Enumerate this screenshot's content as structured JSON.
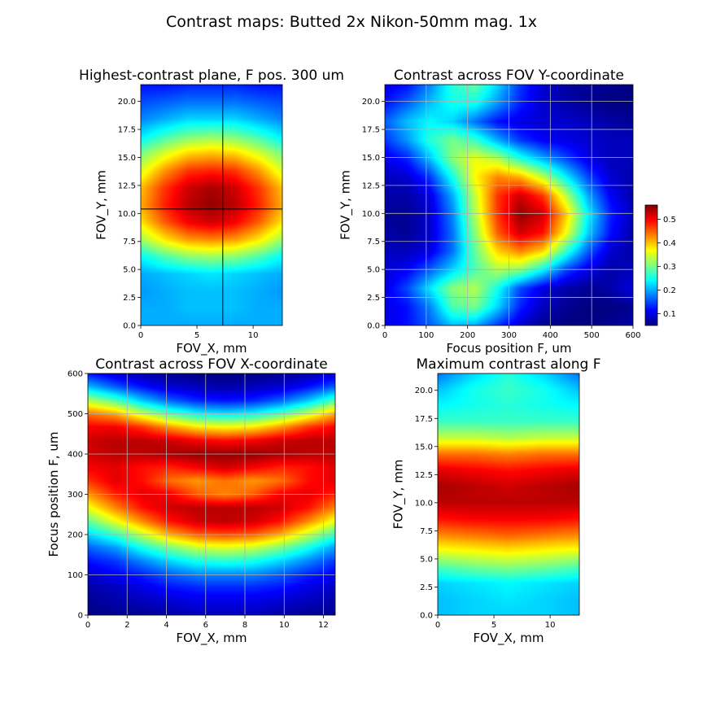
{
  "figure": {
    "suptitle": "Contrast maps: Butted 2x Nikon-50mm mag. 1x",
    "colormap": "jet",
    "background": "#ffffff"
  },
  "chart_data": [
    {
      "id": "best_plane",
      "type": "heatmap",
      "title": "Highest-contrast plane, F pos. 300 um",
      "xlabel": "FOV_X, mm",
      "ylabel": "FOV_Y, mm",
      "xlim": [
        0,
        12.6
      ],
      "ylim": [
        0,
        21.5
      ],
      "xticks": [
        {
          "v": 0,
          "label": "0"
        },
        {
          "v": 5,
          "label": "5"
        },
        {
          "v": 10,
          "label": "10"
        }
      ],
      "yticks": [
        {
          "v": 0,
          "label": "0.0"
        },
        {
          "v": 2.5,
          "label": "2.5"
        },
        {
          "v": 5,
          "label": "5.0"
        },
        {
          "v": 7.5,
          "label": "7.5"
        },
        {
          "v": 10,
          "label": "10.0"
        },
        {
          "v": 12.5,
          "label": "12.5"
        },
        {
          "v": 15,
          "label": "15.0"
        },
        {
          "v": 17.5,
          "label": "17.5"
        },
        {
          "v": 20,
          "label": "20.0"
        }
      ],
      "grid": false,
      "crosshair": {
        "x": 7.3,
        "y": 10.4,
        "color": "#000000"
      },
      "values_model": "peak ~0.55 near (x 7, y 10.5); elliptical falloff to ~0.2 at y 5 and y 15.5; ~0.12 at top edge",
      "values": [
        [
          0.2,
          0.2,
          0.2,
          0.2,
          0.2,
          0.2,
          0.2
        ],
        [
          0.2,
          0.2,
          0.21,
          0.21,
          0.21,
          0.2,
          0.2
        ],
        [
          0.19,
          0.2,
          0.21,
          0.21,
          0.21,
          0.2,
          0.19
        ],
        [
          0.2,
          0.21,
          0.22,
          0.23,
          0.22,
          0.21,
          0.2
        ],
        [
          0.24,
          0.28,
          0.31,
          0.32,
          0.31,
          0.28,
          0.24
        ],
        [
          0.32,
          0.38,
          0.42,
          0.43,
          0.42,
          0.38,
          0.32
        ],
        [
          0.38,
          0.45,
          0.5,
          0.52,
          0.5,
          0.45,
          0.38
        ],
        [
          0.41,
          0.48,
          0.53,
          0.55,
          0.53,
          0.48,
          0.41
        ],
        [
          0.4,
          0.47,
          0.52,
          0.54,
          0.52,
          0.47,
          0.4
        ],
        [
          0.35,
          0.42,
          0.47,
          0.48,
          0.47,
          0.42,
          0.35
        ],
        [
          0.3,
          0.35,
          0.39,
          0.4,
          0.39,
          0.35,
          0.3
        ],
        [
          0.23,
          0.27,
          0.3,
          0.31,
          0.3,
          0.27,
          0.23
        ],
        [
          0.18,
          0.2,
          0.22,
          0.22,
          0.22,
          0.2,
          0.18
        ],
        [
          0.15,
          0.16,
          0.17,
          0.17,
          0.17,
          0.16,
          0.15
        ],
        [
          0.12,
          0.12,
          0.13,
          0.13,
          0.13,
          0.12,
          0.12
        ]
      ]
    },
    {
      "id": "along_y",
      "type": "heatmap",
      "title": "Contrast across FOV Y-coordinate",
      "xlabel": "Focus position F, um",
      "ylabel": "FOV_Y, mm",
      "xlim": [
        0,
        600
      ],
      "ylim": [
        0,
        21.5
      ],
      "xticks": [
        {
          "v": 0,
          "label": "0"
        },
        {
          "v": 100,
          "label": "100"
        },
        {
          "v": 200,
          "label": "200"
        },
        {
          "v": 300,
          "label": "300"
        },
        {
          "v": 400,
          "label": "400"
        },
        {
          "v": 500,
          "label": "500"
        },
        {
          "v": 600,
          "label": "600"
        }
      ],
      "yticks": [
        {
          "v": 0,
          "label": "0.0"
        },
        {
          "v": 2.5,
          "label": "2.5"
        },
        {
          "v": 5,
          "label": "5.0"
        },
        {
          "v": 7.5,
          "label": "7.5"
        },
        {
          "v": 10,
          "label": "10.0"
        },
        {
          "v": 12.5,
          "label": "12.5"
        },
        {
          "v": 15,
          "label": "15.0"
        },
        {
          "v": 17.5,
          "label": "17.5"
        },
        {
          "v": 20,
          "label": "20.0"
        }
      ],
      "grid": true,
      "values_model": "curved ridge: peak F ~240 um at edges, ~320 um at center; max ~0.55 at (F 300, Y 10)",
      "values": [
        [
          0.1,
          0.12,
          0.16,
          0.21,
          0.2,
          0.14,
          0.09,
          0.06,
          0.05,
          0.05,
          0.06,
          0.07
        ],
        [
          0.1,
          0.12,
          0.18,
          0.28,
          0.3,
          0.22,
          0.13,
          0.08,
          0.06,
          0.05,
          0.05,
          0.06
        ],
        [
          0.1,
          0.15,
          0.23,
          0.31,
          0.33,
          0.25,
          0.15,
          0.1,
          0.07,
          0.06,
          0.07,
          0.1
        ],
        [
          0.09,
          0.11,
          0.16,
          0.22,
          0.28,
          0.33,
          0.31,
          0.24,
          0.15,
          0.1,
          0.07,
          0.08
        ],
        [
          0.08,
          0.08,
          0.1,
          0.17,
          0.29,
          0.39,
          0.43,
          0.39,
          0.27,
          0.16,
          0.09,
          0.07
        ],
        [
          0.07,
          0.06,
          0.09,
          0.17,
          0.31,
          0.45,
          0.52,
          0.49,
          0.37,
          0.22,
          0.12,
          0.07
        ],
        [
          0.06,
          0.06,
          0.09,
          0.18,
          0.33,
          0.47,
          0.55,
          0.52,
          0.4,
          0.24,
          0.13,
          0.08
        ],
        [
          0.07,
          0.07,
          0.1,
          0.2,
          0.34,
          0.47,
          0.52,
          0.47,
          0.34,
          0.2,
          0.11,
          0.07
        ],
        [
          0.08,
          0.09,
          0.14,
          0.25,
          0.37,
          0.43,
          0.41,
          0.34,
          0.24,
          0.15,
          0.09,
          0.07
        ],
        [
          0.1,
          0.13,
          0.21,
          0.31,
          0.36,
          0.33,
          0.26,
          0.2,
          0.15,
          0.1,
          0.08,
          0.08
        ],
        [
          0.14,
          0.19,
          0.26,
          0.3,
          0.27,
          0.2,
          0.14,
          0.11,
          0.1,
          0.09,
          0.08,
          0.08
        ],
        [
          0.16,
          0.21,
          0.24,
          0.22,
          0.17,
          0.12,
          0.1,
          0.09,
          0.09,
          0.08,
          0.07,
          0.06
        ],
        [
          0.12,
          0.16,
          0.21,
          0.25,
          0.25,
          0.19,
          0.13,
          0.09,
          0.07,
          0.06,
          0.05,
          0.05
        ],
        [
          0.1,
          0.12,
          0.18,
          0.26,
          0.29,
          0.22,
          0.14,
          0.09,
          0.07,
          0.06,
          0.06,
          0.05
        ]
      ]
    },
    {
      "id": "along_x",
      "type": "heatmap",
      "title": "Contrast across FOV X-coordinate",
      "xlabel": "FOV_X, mm",
      "ylabel": "Focus position F, um",
      "xlim": [
        0,
        12.6
      ],
      "ylim": [
        0,
        600
      ],
      "xticks": [
        {
          "v": 0,
          "label": "0"
        },
        {
          "v": 2,
          "label": "2"
        },
        {
          "v": 4,
          "label": "4"
        },
        {
          "v": 6,
          "label": "6"
        },
        {
          "v": 8,
          "label": "8"
        },
        {
          "v": 10,
          "label": "10"
        },
        {
          "v": 12,
          "label": "12"
        }
      ],
      "yticks": [
        {
          "v": 0,
          "label": "0"
        },
        {
          "v": 100,
          "label": "100"
        },
        {
          "v": 200,
          "label": "200"
        },
        {
          "v": 300,
          "label": "300"
        },
        {
          "v": 400,
          "label": "400"
        },
        {
          "v": 500,
          "label": "500"
        },
        {
          "v": 600,
          "label": "600"
        }
      ],
      "grid": true,
      "values_model": "U-shaped double band; bands at F ~300-330 and ~400 um in center, rising to ~330 and ~430 um at edges",
      "values": [
        [
          0.05,
          0.06,
          0.06,
          0.07,
          0.08,
          0.08,
          0.08,
          0.07,
          0.06,
          0.06
        ],
        [
          0.06,
          0.07,
          0.08,
          0.09,
          0.1,
          0.1,
          0.1,
          0.09,
          0.08,
          0.07
        ],
        [
          0.07,
          0.08,
          0.1,
          0.12,
          0.13,
          0.13,
          0.13,
          0.12,
          0.1,
          0.08
        ],
        [
          0.09,
          0.11,
          0.13,
          0.16,
          0.18,
          0.18,
          0.18,
          0.16,
          0.13,
          0.11
        ],
        [
          0.12,
          0.14,
          0.18,
          0.22,
          0.25,
          0.26,
          0.25,
          0.22,
          0.18,
          0.14
        ],
        [
          0.16,
          0.19,
          0.25,
          0.3,
          0.34,
          0.35,
          0.34,
          0.3,
          0.25,
          0.19
        ],
        [
          0.22,
          0.27,
          0.34,
          0.41,
          0.45,
          0.46,
          0.45,
          0.41,
          0.34,
          0.27
        ],
        [
          0.29,
          0.36,
          0.43,
          0.49,
          0.52,
          0.53,
          0.52,
          0.49,
          0.43,
          0.36
        ],
        [
          0.36,
          0.43,
          0.49,
          0.52,
          0.53,
          0.53,
          0.53,
          0.52,
          0.49,
          0.43
        ],
        [
          0.42,
          0.48,
          0.51,
          0.5,
          0.45,
          0.43,
          0.45,
          0.5,
          0.51,
          0.48
        ],
        [
          0.47,
          0.51,
          0.49,
          0.44,
          0.42,
          0.44,
          0.42,
          0.44,
          0.49,
          0.51
        ],
        [
          0.5,
          0.51,
          0.49,
          0.48,
          0.5,
          0.52,
          0.5,
          0.48,
          0.49,
          0.51
        ],
        [
          0.52,
          0.53,
          0.53,
          0.54,
          0.55,
          0.55,
          0.55,
          0.54,
          0.53,
          0.53
        ],
        [
          0.52,
          0.53,
          0.53,
          0.52,
          0.5,
          0.49,
          0.5,
          0.52,
          0.53,
          0.53
        ],
        [
          0.5,
          0.5,
          0.47,
          0.42,
          0.38,
          0.37,
          0.38,
          0.42,
          0.47,
          0.5
        ],
        [
          0.44,
          0.41,
          0.34,
          0.28,
          0.24,
          0.23,
          0.24,
          0.28,
          0.34,
          0.41
        ],
        [
          0.33,
          0.28,
          0.21,
          0.16,
          0.13,
          0.12,
          0.13,
          0.16,
          0.21,
          0.28
        ],
        [
          0.21,
          0.16,
          0.12,
          0.09,
          0.08,
          0.07,
          0.08,
          0.09,
          0.12,
          0.16
        ],
        [
          0.12,
          0.09,
          0.07,
          0.06,
          0.05,
          0.05,
          0.05,
          0.06,
          0.07,
          0.09
        ]
      ]
    },
    {
      "id": "max_along_f",
      "type": "heatmap",
      "title": "Maximum contrast along F",
      "xlabel": "FOV_X, mm",
      "ylabel": "FOV_Y, mm",
      "xlim": [
        0,
        12.6
      ],
      "ylim": [
        0,
        21.5
      ],
      "xticks": [
        {
          "v": 0,
          "label": "0"
        },
        {
          "v": 5,
          "label": "5"
        },
        {
          "v": 10,
          "label": "10"
        }
      ],
      "yticks": [
        {
          "v": 0,
          "label": "0.0"
        },
        {
          "v": 2.5,
          "label": "2.5"
        },
        {
          "v": 5,
          "label": "5.0"
        },
        {
          "v": 7.5,
          "label": "7.5"
        },
        {
          "v": 10,
          "label": "10.0"
        },
        {
          "v": 12.5,
          "label": "12.5"
        },
        {
          "v": 15,
          "label": "15.0"
        },
        {
          "v": 17.5,
          "label": "17.5"
        },
        {
          "v": 20,
          "label": "20.0"
        }
      ],
      "grid": false,
      "values_model": "mostly Y-dependent horizontal banding; max ~0.55 at Y ~10-11 mm",
      "values": [
        [
          0.21,
          0.22,
          0.22,
          0.22,
          0.21
        ],
        [
          0.21,
          0.22,
          0.23,
          0.22,
          0.21
        ],
        [
          0.22,
          0.23,
          0.24,
          0.23,
          0.22
        ],
        [
          0.28,
          0.3,
          0.31,
          0.3,
          0.28
        ],
        [
          0.36,
          0.37,
          0.38,
          0.37,
          0.36
        ],
        [
          0.43,
          0.44,
          0.45,
          0.44,
          0.43
        ],
        [
          0.49,
          0.5,
          0.5,
          0.5,
          0.49
        ],
        [
          0.53,
          0.53,
          0.53,
          0.53,
          0.53
        ],
        [
          0.54,
          0.53,
          0.52,
          0.53,
          0.54
        ],
        [
          0.51,
          0.5,
          0.49,
          0.5,
          0.51
        ],
        [
          0.44,
          0.44,
          0.43,
          0.44,
          0.44
        ],
        [
          0.34,
          0.34,
          0.33,
          0.34,
          0.34
        ],
        [
          0.27,
          0.27,
          0.27,
          0.27,
          0.27
        ],
        [
          0.24,
          0.25,
          0.26,
          0.25,
          0.24
        ],
        [
          0.21,
          0.25,
          0.27,
          0.25,
          0.21
        ],
        [
          0.17,
          0.22,
          0.26,
          0.22,
          0.17
        ]
      ]
    }
  ],
  "colorbar": {
    "vmin": 0.05,
    "vmax": 0.56,
    "ticks": [
      {
        "v": 0.1,
        "label": "0.1"
      },
      {
        "v": 0.2,
        "label": "0.2"
      },
      {
        "v": 0.3,
        "label": "0.3"
      },
      {
        "v": 0.4,
        "label": "0.4"
      },
      {
        "v": 0.5,
        "label": "0.5"
      }
    ]
  }
}
